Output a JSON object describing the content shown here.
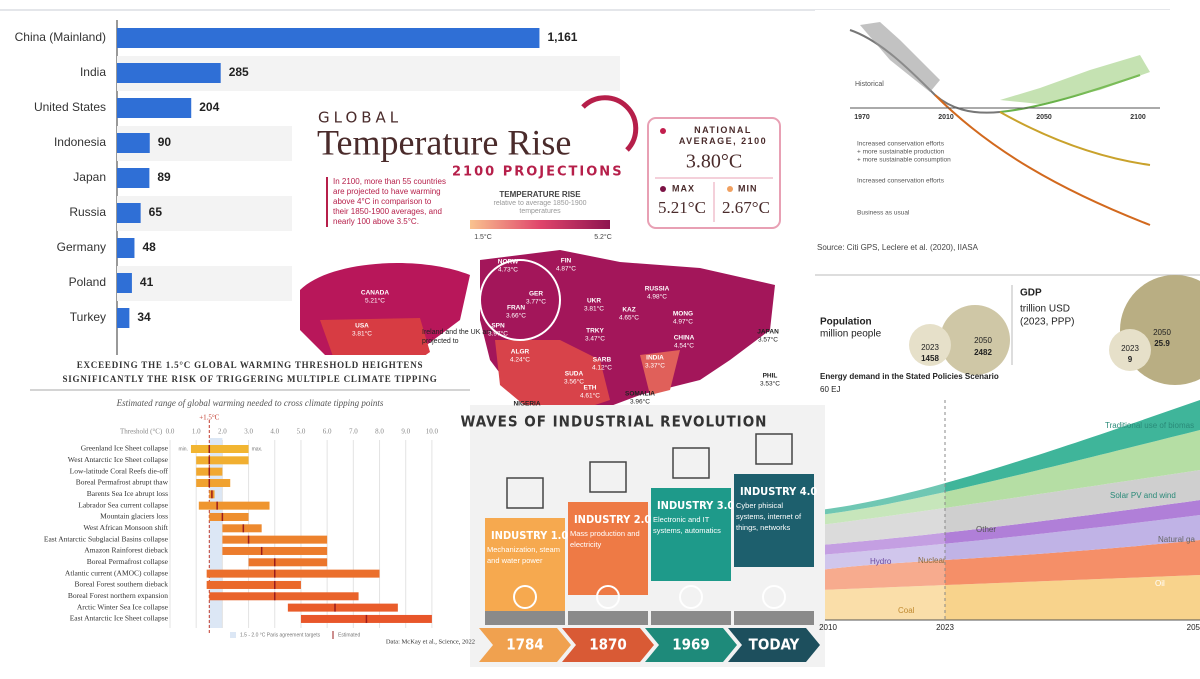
{
  "chart_data": [
    {
      "type": "bar",
      "orientation": "horizontal",
      "categories": [
        "China (Mainland)",
        "India",
        "United States",
        "Indonesia",
        "Japan",
        "Russia",
        "Germany",
        "Poland",
        "Turkey"
      ],
      "values": [
        1161,
        285,
        204,
        90,
        89,
        65,
        48,
        41,
        34
      ],
      "value_labels": [
        "1,161",
        "285",
        "204",
        "90",
        "89",
        "65",
        "48",
        "41",
        "34"
      ],
      "color": "#2f6fd6",
      "xlim": [
        0,
        1190
      ]
    },
    {
      "type": "range",
      "heading": "EXCEEDING THE 1.5°C GLOBAL WARMING THRESHOLD HEIGHTENS SIGNIFICANTLY THE RISK OF TRIGGERING MULTIPLE CLIMATE TIPPING POINTS",
      "title": "Estimated range of global warming needed to cross climate tipping points",
      "x_label": "Threshold (°C)",
      "threshold": 1.5,
      "threshold_label": "+1.5°C",
      "band": [
        1.5,
        2.0
      ],
      "min_label": "min.",
      "max_label": "max.",
      "categories": [
        "Greenland Ice Sheet collapse",
        "West Antarctic Ice Sheet collapse",
        "Low-latitude Coral Reefs die-off",
        "Boreal Permafrost abrupt thaw",
        "Barents Sea Ice abrupt loss",
        "Labrador Sea current collapse",
        "Mountain glaciers loss",
        "West African Monsoon shift",
        "East Antarctic Subglacial Basins collapse",
        "Amazon Rainforest dieback",
        "Boreal Permafrost collapse",
        "Atlantic current (AMOC) collapse",
        "Boreal Forest southern dieback",
        "Boreal Forest northern expansion",
        "Arctic Winter Sea Ice collapse",
        "East Antarctic Ice Sheet collapse"
      ],
      "low": [
        0.8,
        1.0,
        1.0,
        1.0,
        1.5,
        1.1,
        1.5,
        2.0,
        2.0,
        2.0,
        3.0,
        1.4,
        1.4,
        1.5,
        4.5,
        5.0
      ],
      "high": [
        3.0,
        3.0,
        2.0,
        2.3,
        1.7,
        3.8,
        3.0,
        3.5,
        6.0,
        6.0,
        6.0,
        8.0,
        5.0,
        7.2,
        8.7,
        10.0
      ],
      "estimate": [
        1.5,
        1.5,
        1.5,
        1.5,
        1.6,
        1.8,
        2.0,
        2.8,
        3.0,
        3.5,
        4.0,
        4.0,
        4.0,
        4.0,
        6.3,
        7.5
      ],
      "xlim": [
        0,
        10.5
      ],
      "xticks": [
        {
          "value": 0,
          "label": "0.0"
        },
        {
          "value": 1,
          "label": "1.0"
        },
        {
          "value": 2,
          "label": "2.0"
        },
        {
          "value": 3,
          "label": "3.0"
        },
        {
          "value": 4,
          "label": "4.0"
        },
        {
          "value": 5,
          "label": "5.0"
        },
        {
          "value": 6,
          "label": "6.0"
        },
        {
          "value": 7,
          "label": "7.0"
        },
        {
          "value": 8,
          "label": "8.0"
        },
        {
          "value": 9,
          "label": "9.0"
        },
        {
          "value": 10,
          "label": "10.0"
        }
      ],
      "legend": [
        "1.5 - 2.0 °C Paris agreement targets",
        "Estimated"
      ],
      "source": "Data: McKay et al., Science, 2022"
    }
  ],
  "temperature": {
    "kicker": "GLOBAL",
    "title": "Temperature Rise",
    "subtitle": "2100 PROJECTIONS",
    "note": "In 2100, more than 55 countries are projected to have warming above 4°C in comparison to their 1850-1900 averages, and nearly 100 above 3.5°C.",
    "scale_title": "TEMPERATURE RISE",
    "scale_subtitle": "relative to average 1850-1900 temperatures",
    "scale_min": "1.5°C",
    "scale_max": "5.2°C",
    "national_label": "NATIONAL AVERAGE, 2100",
    "national": "3.80°C",
    "max_label": "MAX",
    "max": "5.21°C",
    "min_label": "MIN",
    "min": "2.67°C",
    "map_note": "Ireland and the UK are projected to",
    "regions": [
      {
        "name": "CANADA",
        "value": "5.21°C"
      },
      {
        "name": "USA",
        "value": "3.81°C"
      },
      {
        "name": "NORW",
        "value": "4.73°C"
      },
      {
        "name": "FIN",
        "value": "4.87°C"
      },
      {
        "name": "GER",
        "value": "3.77°C"
      },
      {
        "name": "FRAN",
        "value": "3.66°C"
      },
      {
        "name": "UKR",
        "value": "3.81°C"
      },
      {
        "name": "SPN",
        "value": "3.97°C"
      },
      {
        "name": "TRKY",
        "value": "3.47°C"
      },
      {
        "name": "RUSSIA",
        "value": "4.98°C"
      },
      {
        "name": "KAZ",
        "value": "4.65°C"
      },
      {
        "name": "MONG",
        "value": "4.97°C"
      },
      {
        "name": "CHINA",
        "value": "4.54°C"
      },
      {
        "name": "ALGR",
        "value": "4.24°C"
      },
      {
        "name": "INDIA",
        "value": "3.37°C"
      },
      {
        "name": "SARB",
        "value": "4.12°C"
      },
      {
        "name": "SUDA",
        "value": "3.56°C"
      },
      {
        "name": "ETH",
        "value": "4.61°C"
      },
      {
        "name": "SOMALIA",
        "value": "3.96°C"
      },
      {
        "name": "JAPAN",
        "value": "3.57°C"
      },
      {
        "name": "PHIL",
        "value": "3.53°C"
      },
      {
        "name": "NIGERIA"
      }
    ]
  },
  "industry": {
    "title": "WAVES OF INDUSTRIAL REVOLUTION",
    "stages": [
      {
        "name": "INDUSTRY 1.0",
        "text": "Mechanization, steam and water power",
        "year": "1784"
      },
      {
        "name": "INDUSTRY 2.0",
        "text": "Mass production and electricity",
        "year": "1870"
      },
      {
        "name": "INDUSTRY 3.0",
        "text": "Electronic and IT systems, automatics",
        "year": "1969"
      },
      {
        "name": "INDUSTRY 4.0",
        "text": "Cyber phisical systems, internet of things, networks",
        "year": "TODAY"
      }
    ]
  },
  "biodiversity": {
    "historical": "Historical",
    "years": [
      "1970",
      "2010",
      "2050",
      "2100"
    ],
    "scenario_lines": [
      "Increased conservation efforts",
      "+ more sustainable production",
      "+ more sustainable consumption"
    ],
    "scenario_conservation": "Increased conservation efforts",
    "scenario_bau": "Business as usual",
    "source": "Source: Citi GPS, Leclere et al. (2020), IIASA"
  },
  "energy": {
    "population": {
      "title": "Population",
      "unit": "million people",
      "y1": "2023",
      "v1": "1458",
      "y2": "2050",
      "v2": "2482"
    },
    "gdp": {
      "title": "GDP",
      "unit": "trillion USD",
      "note": "(2023, PPP)",
      "y1": "2023",
      "v1": "9",
      "y2": "2050",
      "v2": "25.9"
    },
    "chart_title": "Energy demand in the Stated Policies Scenario",
    "unit": "60 EJ",
    "labels": [
      "Traditional use of biomas",
      "Solar PV and wind",
      "Natural ga",
      "Other",
      "Hydro",
      "Nuclear",
      "Oil",
      "Coal"
    ],
    "years": [
      "2010",
      "2023",
      "205"
    ]
  }
}
